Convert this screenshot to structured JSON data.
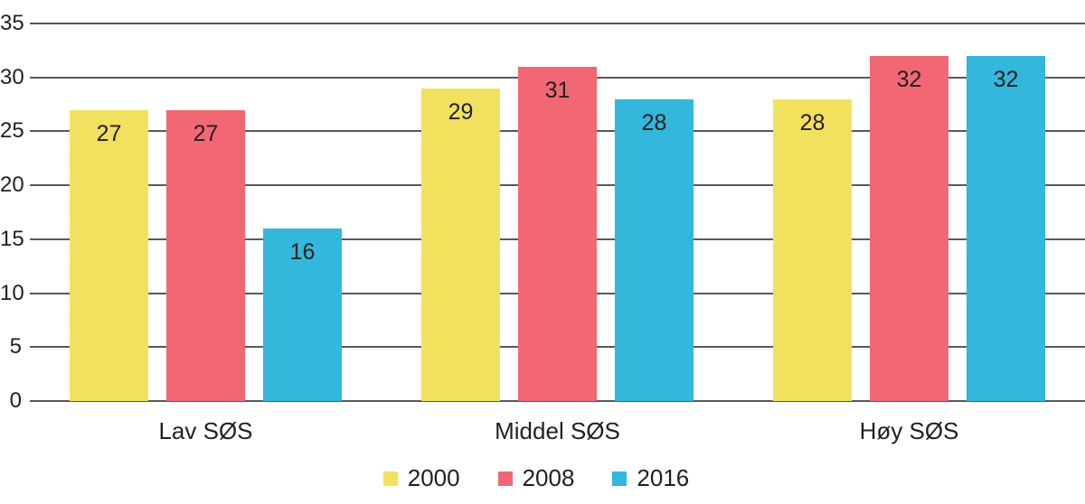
{
  "chart_data": {
    "type": "bar",
    "title": "",
    "categories": [
      "Lav SØS",
      "Middel SØS",
      "Høy SØS"
    ],
    "series": [
      {
        "name": "2000",
        "color": "#F2E15F",
        "values": [
          27,
          29,
          28
        ]
      },
      {
        "name": "2008",
        "color": "#F16874",
        "values": [
          27,
          31,
          32
        ]
      },
      {
        "name": "2016",
        "color": "#33B7DC",
        "values": [
          16,
          28,
          32
        ]
      }
    ],
    "ylim": [
      0,
      35
    ],
    "yticks": [
      0,
      5,
      10,
      15,
      20,
      25,
      30,
      35
    ],
    "xlabel": "",
    "ylabel": "",
    "grid": true,
    "bar_labels": true,
    "legend_position": "bottom",
    "colors": {
      "gridline": "#58595B",
      "text": "#231F20",
      "background": "#FFFFFF"
    }
  }
}
